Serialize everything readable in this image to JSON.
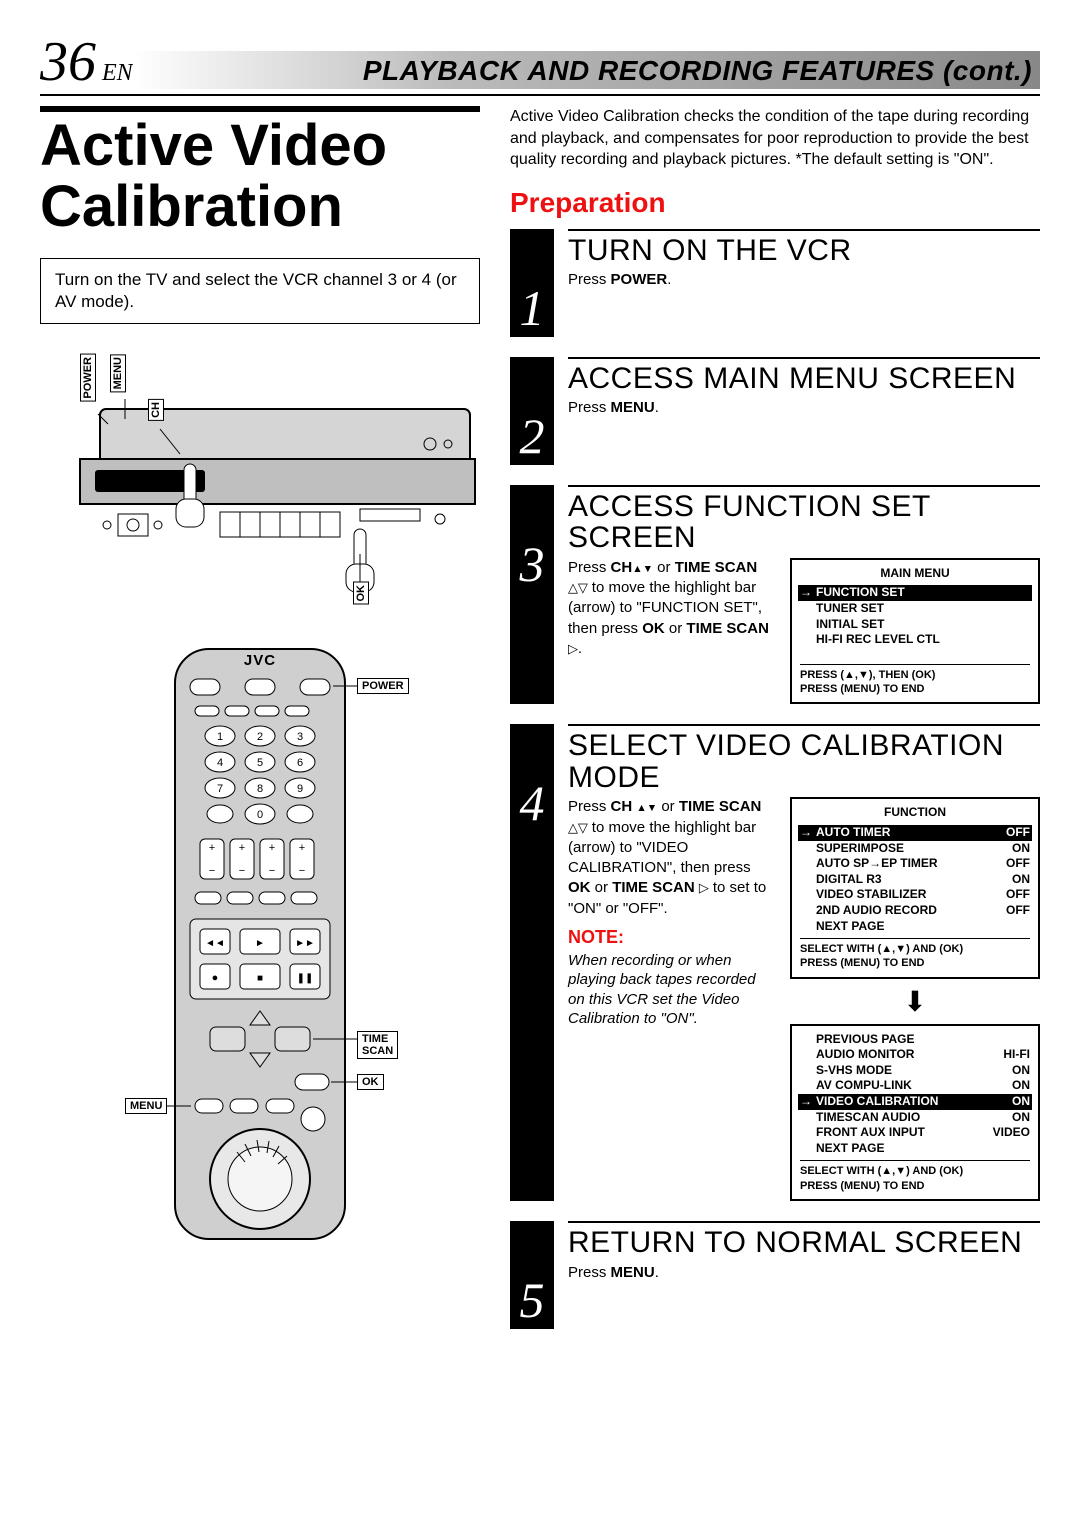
{
  "pageNumber": "36",
  "pageLang": "EN",
  "headerTitle": "PLAYBACK AND RECORDING FEATURES (cont.)",
  "mainTitle": "Active Video Calibration",
  "instructionBox": "Turn on the TV and select the VCR channel 3 or 4 (or AV mode).",
  "remoteBrand": "JVC",
  "vcrLabels": {
    "power": "POWER",
    "menu": "MENU",
    "ch": "CH",
    "ok": "OK"
  },
  "remoteLabels": {
    "power": "POWER",
    "timeScan": "TIME SCAN",
    "ok": "OK",
    "menu": "MENU"
  },
  "introPara": "Active Video Calibration checks the condition of the tape during recording and playback, and compensates for poor reproduction to provide the best quality recording and playback pictures. *The default setting is \"ON\".",
  "prepHeading": "Preparation",
  "steps": [
    {
      "num": "1",
      "title": "TURN ON THE VCR",
      "bodyHtml": "Press <b>POWER</b>."
    },
    {
      "num": "2",
      "title": "ACCESS MAIN MENU SCREEN",
      "bodyHtml": "Press <b>MENU</b>."
    },
    {
      "num": "3",
      "title": "ACCESS FUNCTION SET SCREEN",
      "bodyHtml": "Press <b>CH</b><span class='tri-up'></span><span class='tri-down'></span> or <b>TIME SCAN</b> <span class='tri-up-o'></span><span class='tri-down-o'></span> to move the highlight bar (arrow) to \"FUNCTION SET\", then press <b>OK</b> or <b>TIME SCAN</b> <span class='tri-right'></span>.",
      "osd": {
        "title": "MAIN MENU",
        "items": [
          {
            "label": "FUNCTION SET",
            "sel": true
          },
          {
            "label": "TUNER SET"
          },
          {
            "label": "INITIAL SET"
          },
          {
            "label": "HI-FI REC LEVEL CTL"
          }
        ],
        "foot": [
          "PRESS (▲,▼), THEN (OK)",
          "PRESS (MENU) TO END"
        ],
        "spaceBeforeFoot": true
      }
    },
    {
      "num": "4",
      "title": "SELECT VIDEO CALIBRATION MODE",
      "bodyHtml": "Press <b>CH</b> <span class='tri-up'></span><span class='tri-down'></span> or <b>TIME SCAN</b> <span class='tri-up-o'></span><span class='tri-down-o'></span> to move the highlight bar (arrow) to \"VIDEO CALIBRATION\", then press <b>OK</b> or <b>TIME SCAN</b> <span class='tri-right'></span> to set to \"ON\" or \"OFF\".",
      "noteHeading": "NOTE:",
      "noteBody": "When recording or when playing back tapes recorded on this VCR set the Video Calibration to \"ON\".",
      "osd": {
        "title": "FUNCTION",
        "items": [
          {
            "label": "AUTO TIMER",
            "val": "OFF",
            "sel": true
          },
          {
            "label": "SUPERIMPOSE",
            "val": "ON"
          },
          {
            "label": "AUTO SP→EP TIMER",
            "val": "OFF"
          },
          {
            "label": "DIGITAL R3",
            "val": "ON"
          },
          {
            "label": "VIDEO STABILIZER",
            "val": "OFF"
          },
          {
            "label": "2ND AUDIO RECORD",
            "val": "OFF"
          },
          {
            "label": "NEXT PAGE"
          }
        ],
        "foot": [
          "SELECT WITH (▲,▼) AND (OK)",
          "PRESS (MENU) TO END"
        ]
      },
      "osd2": {
        "items": [
          {
            "label": "PREVIOUS PAGE"
          },
          {
            "label": "AUDIO MONITOR",
            "val": "HI-FI"
          },
          {
            "label": "S-VHS MODE",
            "val": "ON"
          },
          {
            "label": "AV COMPU-LINK",
            "val": "ON"
          },
          {
            "label": "VIDEO CALIBRATION",
            "val": "ON",
            "sel": true
          },
          {
            "label": "TIMESCAN AUDIO",
            "val": "ON"
          },
          {
            "label": "FRONT AUX INPUT",
            "val": "VIDEO"
          },
          {
            "label": "NEXT PAGE"
          }
        ],
        "foot": [
          "SELECT WITH (▲,▼) AND (OK)",
          "PRESS (MENU) TO END"
        ]
      }
    },
    {
      "num": "5",
      "title": "RETURN TO NORMAL SCREEN",
      "bodyHtml": "Press <b>MENU</b>."
    }
  ]
}
